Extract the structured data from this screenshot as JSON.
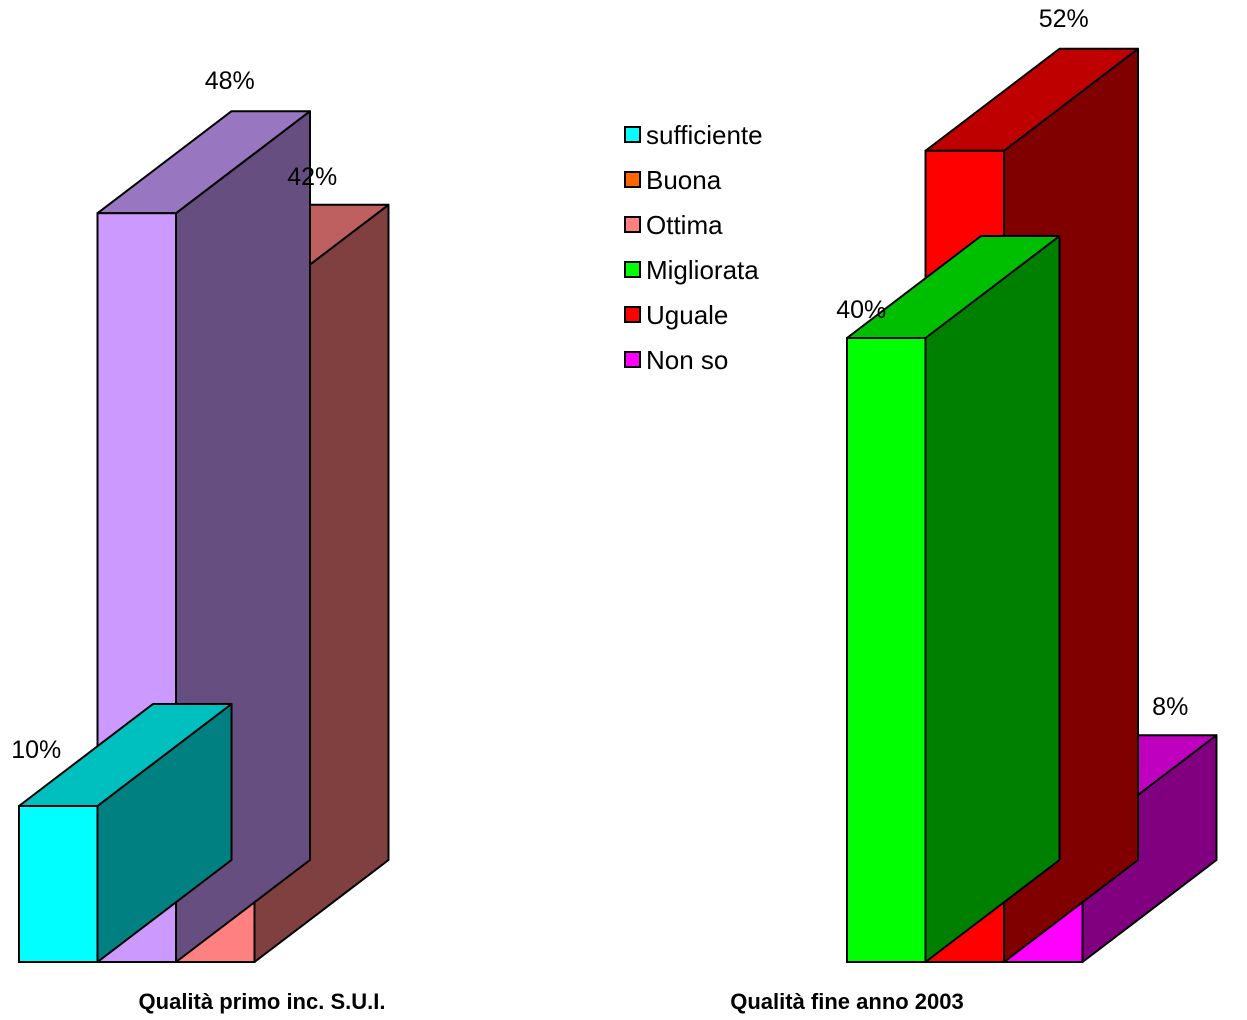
{
  "chart_data": [
    {
      "type": "bar",
      "title": "Qualità primo inc. S.U.I.",
      "categories": [
        "sufficiente",
        "Buona",
        "Ottima"
      ],
      "values": [
        10,
        48,
        42
      ],
      "labels": [
        "10%",
        "48%",
        "42%"
      ],
      "colors": [
        "#00FFFF",
        "#CC99FF",
        "#FF8080"
      ],
      "top_colors": [
        "#00BFBF",
        "#9977C0",
        "#BF6060"
      ],
      "side_colors": [
        "#008080",
        "#664F80",
        "#804040"
      ]
    },
    {
      "type": "bar",
      "title": "Qualità fine anno 2003",
      "categories": [
        "Migliorata",
        "Uguale",
        "Non so"
      ],
      "values": [
        40,
        52,
        8
      ],
      "labels": [
        "40%",
        "52%",
        "8%"
      ],
      "colors": [
        "#00FF00",
        "#FF0000",
        "#FF00FF"
      ],
      "top_colors": [
        "#00BF00",
        "#BF0000",
        "#BF00BF"
      ],
      "side_colors": [
        "#008000",
        "#800000",
        "#800080"
      ]
    }
  ],
  "legend": {
    "position": "center-top",
    "items": [
      {
        "label": "sufficiente",
        "color": "#00FFFF"
      },
      {
        "label": "Buona",
        "color": "#FF6600"
      },
      {
        "label": "Ottima",
        "color": "#FF8080"
      },
      {
        "label": "Migliorata",
        "color": "#00FF00"
      },
      {
        "label": "Uguale",
        "color": "#FF0000"
      },
      {
        "label": "Non so",
        "color": "#FF00FF"
      }
    ]
  }
}
